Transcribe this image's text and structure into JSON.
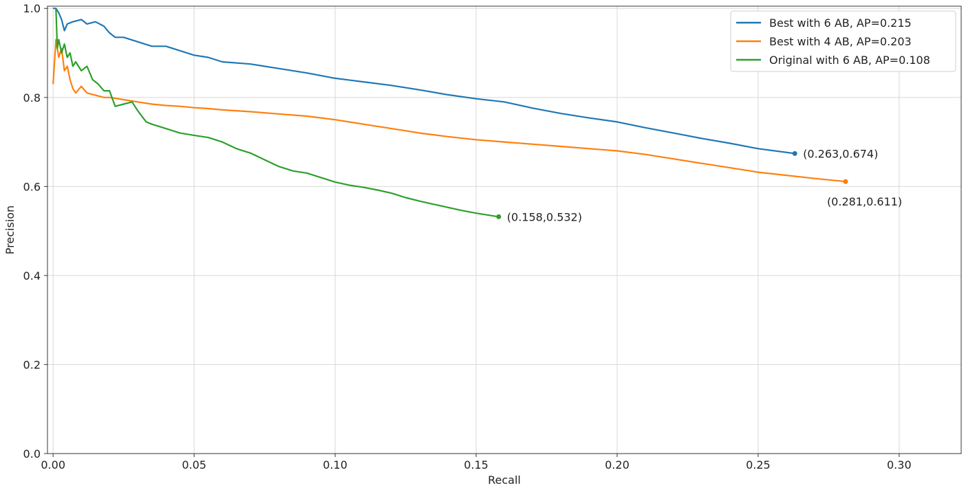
{
  "chart_data": {
    "type": "line",
    "xlabel": "Recall",
    "ylabel": "Precision",
    "xlim": [
      -0.002,
      0.322
    ],
    "ylim": [
      0.0,
      1.005
    ],
    "xticks": [
      0.0,
      0.05,
      0.1,
      0.15,
      0.2,
      0.25,
      0.3
    ],
    "xtick_labels": [
      "0.00",
      "0.05",
      "0.10",
      "0.15",
      "0.20",
      "0.25",
      "0.30"
    ],
    "yticks": [
      0.0,
      0.2,
      0.4,
      0.6,
      0.8,
      1.0
    ],
    "ytick_labels": [
      "0.0",
      "0.2",
      "0.4",
      "0.6",
      "0.8",
      "1.0"
    ],
    "grid": true,
    "legend_position": "top-right",
    "series": [
      {
        "name": "Best with 6 AB, AP=0.215",
        "color": "#1f77b4",
        "x": [
          0.0,
          0.001,
          0.002,
          0.003,
          0.004,
          0.005,
          0.007,
          0.01,
          0.012,
          0.015,
          0.018,
          0.02,
          0.022,
          0.025,
          0.03,
          0.035,
          0.04,
          0.045,
          0.05,
          0.055,
          0.06,
          0.07,
          0.08,
          0.09,
          0.1,
          0.11,
          0.12,
          0.13,
          0.14,
          0.15,
          0.16,
          0.17,
          0.18,
          0.19,
          0.2,
          0.21,
          0.22,
          0.23,
          0.24,
          0.25,
          0.263
        ],
        "y": [
          1.0,
          1.0,
          0.99,
          0.975,
          0.95,
          0.965,
          0.97,
          0.975,
          0.965,
          0.97,
          0.96,
          0.945,
          0.935,
          0.935,
          0.925,
          0.915,
          0.915,
          0.905,
          0.895,
          0.89,
          0.88,
          0.875,
          0.865,
          0.855,
          0.843,
          0.835,
          0.827,
          0.817,
          0.806,
          0.797,
          0.79,
          0.776,
          0.764,
          0.754,
          0.745,
          0.732,
          0.72,
          0.708,
          0.697,
          0.685,
          0.674
        ]
      },
      {
        "name": "Best with 4 AB, AP=0.203",
        "color": "#ff7f0e",
        "x": [
          0.0,
          0.001,
          0.002,
          0.003,
          0.004,
          0.005,
          0.006,
          0.007,
          0.008,
          0.01,
          0.012,
          0.015,
          0.018,
          0.02,
          0.025,
          0.03,
          0.035,
          0.04,
          0.045,
          0.05,
          0.055,
          0.06,
          0.07,
          0.08,
          0.09,
          0.1,
          0.11,
          0.12,
          0.13,
          0.14,
          0.15,
          0.16,
          0.17,
          0.18,
          0.19,
          0.2,
          0.21,
          0.22,
          0.23,
          0.24,
          0.25,
          0.26,
          0.27,
          0.281
        ],
        "y": [
          0.83,
          0.93,
          0.89,
          0.91,
          0.86,
          0.87,
          0.84,
          0.82,
          0.81,
          0.825,
          0.81,
          0.805,
          0.8,
          0.8,
          0.795,
          0.79,
          0.785,
          0.782,
          0.78,
          0.777,
          0.775,
          0.772,
          0.768,
          0.763,
          0.758,
          0.75,
          0.74,
          0.73,
          0.72,
          0.712,
          0.705,
          0.7,
          0.695,
          0.69,
          0.685,
          0.68,
          0.672,
          0.662,
          0.652,
          0.642,
          0.632,
          0.625,
          0.618,
          0.611
        ]
      },
      {
        "name": "Original with 6 AB, AP=0.108",
        "color": "#2ca02c",
        "x": [
          0.001,
          0.0015,
          0.002,
          0.003,
          0.004,
          0.005,
          0.006,
          0.007,
          0.008,
          0.01,
          0.012,
          0.014,
          0.016,
          0.018,
          0.02,
          0.022,
          0.025,
          0.028,
          0.03,
          0.033,
          0.035,
          0.04,
          0.045,
          0.05,
          0.055,
          0.06,
          0.065,
          0.07,
          0.075,
          0.08,
          0.085,
          0.09,
          0.095,
          0.1,
          0.105,
          0.11,
          0.115,
          0.12,
          0.125,
          0.13,
          0.135,
          0.14,
          0.145,
          0.15,
          0.155,
          0.158
        ],
        "y": [
          1.0,
          0.91,
          0.93,
          0.9,
          0.92,
          0.89,
          0.9,
          0.87,
          0.88,
          0.86,
          0.87,
          0.84,
          0.83,
          0.815,
          0.815,
          0.78,
          0.785,
          0.79,
          0.77,
          0.745,
          0.74,
          0.73,
          0.72,
          0.715,
          0.71,
          0.7,
          0.685,
          0.675,
          0.66,
          0.645,
          0.635,
          0.63,
          0.62,
          0.61,
          0.603,
          0.598,
          0.592,
          0.585,
          0.575,
          0.567,
          0.56,
          0.553,
          0.546,
          0.54,
          0.535,
          0.532
        ]
      }
    ],
    "annotations": [
      {
        "text": "(0.263,0.674)",
        "x": 0.263,
        "y": 0.674,
        "color": "#1f77b4",
        "align": "right"
      },
      {
        "text": "(0.281,0.611)",
        "x": 0.281,
        "y": 0.611,
        "color": "#ff7f0e",
        "align": "below-right"
      },
      {
        "text": "(0.158,0.532)",
        "x": 0.158,
        "y": 0.532,
        "color": "#2ca02c",
        "align": "right"
      }
    ]
  }
}
